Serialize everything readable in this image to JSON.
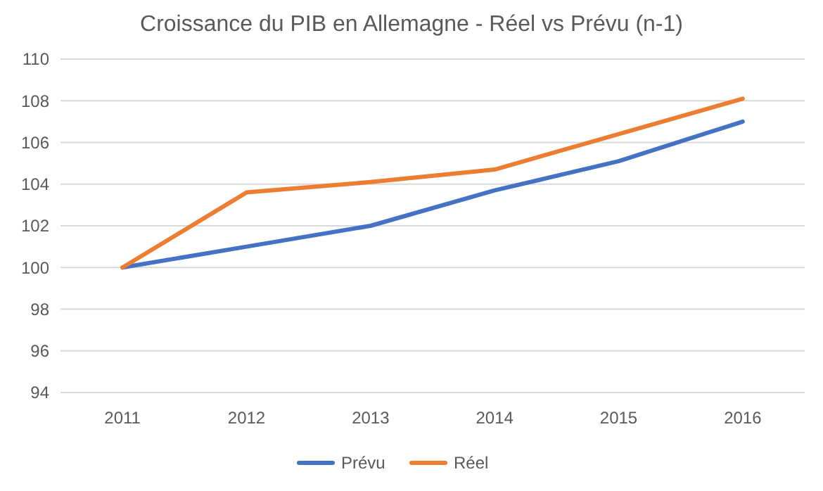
{
  "chart_data": {
    "type": "line",
    "title": "Croissance du PIB en Allemagne - Réel vs Prévu (n-1)",
    "categories": [
      "2011",
      "2012",
      "2013",
      "2014",
      "2015",
      "2016"
    ],
    "series": [
      {
        "name": "Prévu",
        "color": "#4472c4",
        "values": [
          100,
          101,
          102,
          103.7,
          105.1,
          107
        ]
      },
      {
        "name": "Réel",
        "color": "#ed7d31",
        "values": [
          100,
          103.6,
          104.1,
          104.7,
          106.4,
          108.1
        ]
      }
    ],
    "ylim": [
      94,
      110
    ],
    "yticks": [
      94,
      96,
      98,
      100,
      102,
      104,
      106,
      108,
      110
    ],
    "grid": "y",
    "legend": "bottom",
    "marker": "none",
    "line_style": "solid"
  }
}
